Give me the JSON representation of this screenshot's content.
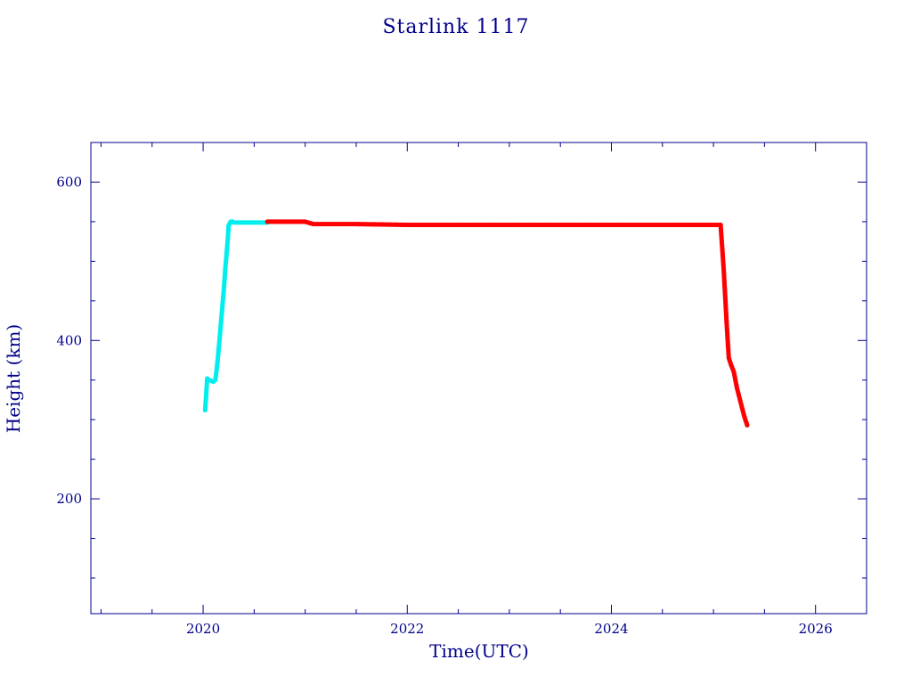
{
  "chart_data": {
    "type": "scatter",
    "title": "Starlink 1117",
    "xlabel": "Time(UTC)",
    "ylabel": "Height (km)",
    "xlim": [
      2018.9,
      2026.5
    ],
    "ylim": [
      55,
      650
    ],
    "xticks": [
      2020,
      2022,
      2024,
      2026
    ],
    "yticks": [
      200,
      400,
      600
    ],
    "grid": false,
    "axis_color": "#00008B",
    "series": [
      {
        "color": "#00EEEE",
        "x": [
          2020.02,
          2020.04,
          2020.06,
          2020.08,
          2020.1,
          2020.12,
          2020.14,
          2020.16,
          2020.18,
          2020.2,
          2020.22,
          2020.24,
          2020.25,
          2020.27,
          2020.29,
          2020.3,
          2020.35,
          2020.4,
          2020.45,
          2020.5,
          2020.55,
          2020.6,
          2020.63
        ],
        "y": [
          312,
          352,
          350,
          349,
          348,
          350,
          372,
          400,
          430,
          460,
          495,
          525,
          545,
          550,
          550,
          549,
          549,
          549,
          549,
          549,
          549,
          549,
          549
        ]
      },
      {
        "color": "#FF0000",
        "x": [
          2020.63,
          2020.8,
          2021.0,
          2021.08,
          2021.2,
          2021.5,
          2022.0,
          2022.5,
          2023.0,
          2023.5,
          2024.0,
          2024.5,
          2025.0,
          2025.07,
          2025.1,
          2025.13,
          2025.15,
          2025.17,
          2025.2,
          2025.23,
          2025.27,
          2025.3,
          2025.33
        ],
        "y": [
          550,
          550,
          550,
          547,
          547,
          547,
          546,
          546,
          546,
          546,
          546,
          546,
          546,
          546,
          490,
          420,
          378,
          370,
          360,
          340,
          320,
          305,
          293
        ]
      }
    ]
  }
}
